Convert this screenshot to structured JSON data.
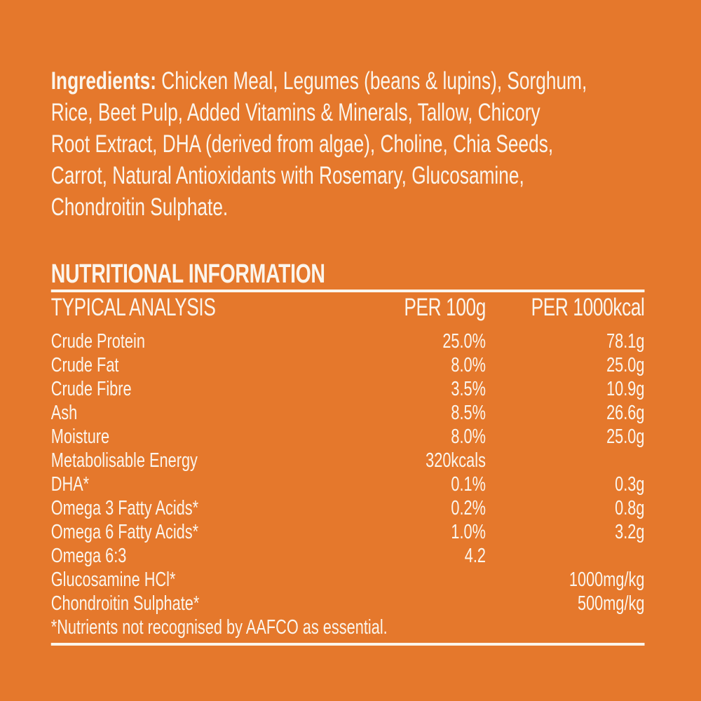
{
  "colors": {
    "background": "#E5782C",
    "text": "#FBF5EC"
  },
  "ingredients": {
    "bold_label": "Ingredients:",
    "line1_rest": " Chicken Meal, Legumes (beans & lupins), Sorghum,",
    "lines": [
      "Rice, Beet Pulp, Added Vitamins & Minerals, Tallow, Chicory",
      "Root Extract, DHA (derived from algae), Choline, Chia Seeds,",
      "Carrot, Natural Antioxidants with Rosemary, Glucosamine,",
      "Chondroitin Sulphate."
    ]
  },
  "nutrition": {
    "section_title": "NUTRITIONAL INFORMATION",
    "table_header": {
      "col1": "TYPICAL ANALYSIS",
      "col2": "PER 100g",
      "col3": "PER 1000kcal"
    },
    "rows": [
      {
        "name": "Crude Protein",
        "per_100g": "25.0%",
        "per_1000kcal": "78.1g"
      },
      {
        "name": "Crude Fat",
        "per_100g": "8.0%",
        "per_1000kcal": "25.0g"
      },
      {
        "name": "Crude Fibre",
        "per_100g": "3.5%",
        "per_1000kcal": "10.9g"
      },
      {
        "name": "Ash",
        "per_100g": "8.5%",
        "per_1000kcal": "26.6g"
      },
      {
        "name": "Moisture",
        "per_100g": "8.0%",
        "per_1000kcal": "25.0g"
      },
      {
        "name": "Metabolisable Energy",
        "per_100g": "320kcals",
        "per_1000kcal": ""
      },
      {
        "name": "DHA*",
        "per_100g": "0.1%",
        "per_1000kcal": "0.3g"
      },
      {
        "name": "Omega 3 Fatty Acids*",
        "per_100g": "0.2%",
        "per_1000kcal": "0.8g"
      },
      {
        "name": "Omega 6 Fatty Acids*",
        "per_100g": "1.0%",
        "per_1000kcal": "3.2g"
      },
      {
        "name": "Omega 6:3",
        "per_100g": "4.2",
        "per_1000kcal": ""
      },
      {
        "name": "Glucosamine HCl*",
        "per_100g": "",
        "per_1000kcal": "1000mg/kg"
      },
      {
        "name": "Chondroitin Sulphate*",
        "per_100g": "",
        "per_1000kcal": "500mg/kg"
      }
    ],
    "footnote": "*Nutrients not recognised by AAFCO as essential."
  }
}
